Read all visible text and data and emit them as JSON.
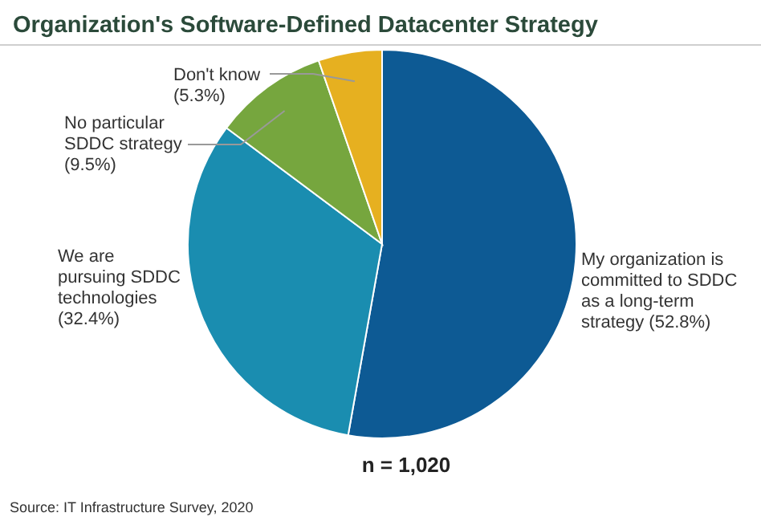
{
  "chart_data": {
    "type": "pie",
    "title": "Organization's Software-Defined Datacenter Strategy",
    "categories": [
      "My organization is committed to SDDC as a long-term strategy",
      "We are pursuing SDDC technologies",
      "No particular SDDC strategy",
      "Don't know"
    ],
    "values": [
      52.8,
      32.4,
      9.5,
      5.3
    ],
    "colors": [
      "#0d5a94",
      "#1a8db0",
      "#76a63e",
      "#e6b020"
    ],
    "value_labels": [
      "(52.8%)",
      "(32.4%)",
      "(9.5%)",
      "(5.3%)"
    ],
    "annotations": [
      "n = 1,020",
      "Source: IT Infrastructure Survey, 2020"
    ]
  }
}
